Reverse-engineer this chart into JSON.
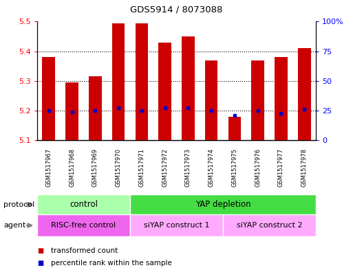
{
  "title": "GDS5914 / 8073088",
  "samples": [
    "GSM1517967",
    "GSM1517968",
    "GSM1517969",
    "GSM1517970",
    "GSM1517971",
    "GSM1517972",
    "GSM1517973",
    "GSM1517974",
    "GSM1517975",
    "GSM1517976",
    "GSM1517977",
    "GSM1517978"
  ],
  "bar_values": [
    5.38,
    5.295,
    5.315,
    5.495,
    5.495,
    5.43,
    5.45,
    5.37,
    5.18,
    5.37,
    5.38,
    5.41
  ],
  "dot_values": [
    5.2,
    5.195,
    5.2,
    5.21,
    5.2,
    5.21,
    5.21,
    5.2,
    5.185,
    5.2,
    5.19,
    5.205
  ],
  "ylim": [
    5.1,
    5.5
  ],
  "yticks_left": [
    5.1,
    5.2,
    5.3,
    5.4,
    5.5
  ],
  "yticks_right": [
    0,
    25,
    50,
    75,
    100
  ],
  "bar_color": "#cc0000",
  "dot_color": "#0000cc",
  "bar_bottom": 5.1,
  "protocol_groups": [
    {
      "label": "control",
      "start": 0,
      "end": 4,
      "color": "#aaffaa"
    },
    {
      "label": "YAP depletion",
      "start": 4,
      "end": 12,
      "color": "#44dd44"
    }
  ],
  "agent_groups": [
    {
      "label": "RISC-free control",
      "start": 0,
      "end": 4,
      "color": "#ee66ee"
    },
    {
      "label": "siYAP construct 1",
      "start": 4,
      "end": 8,
      "color": "#ffaaff"
    },
    {
      "label": "siYAP construct 2",
      "start": 8,
      "end": 12,
      "color": "#ffaaff"
    }
  ],
  "protocol_label": "protocol",
  "agent_label": "agent",
  "legend_items": [
    {
      "label": "transformed count",
      "color": "#cc0000"
    },
    {
      "label": "percentile rank within the sample",
      "color": "#0000cc"
    }
  ],
  "background_color": "#ffffff",
  "panel_bg": "#d8d8d8",
  "grid_yticks": [
    5.2,
    5.3,
    5.4
  ]
}
